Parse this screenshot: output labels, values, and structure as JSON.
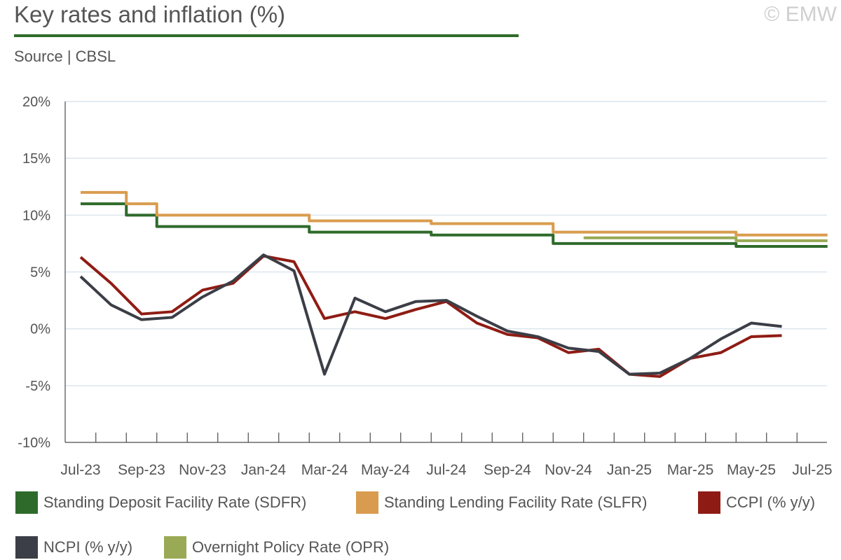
{
  "header": {
    "title": "Key rates and inflation (%)",
    "copyright": "© EMW",
    "source": "Source | CBSL"
  },
  "colors": {
    "title_rule": "#2e6b2a",
    "grid": "#dce6ef",
    "axis": "#4a4a4a"
  },
  "chart_data": {
    "type": "line",
    "title": "Key rates and inflation (%)",
    "x_labels": [
      "Jul-23",
      "Aug-23",
      "Sep-23",
      "Oct-23",
      "Nov-23",
      "Dec-23",
      "Jan-24",
      "Feb-24",
      "Mar-24",
      "Apr-24",
      "May-24",
      "Jun-24",
      "Jul-24",
      "Aug-24",
      "Sep-24",
      "Oct-24",
      "Nov-24",
      "Dec-24",
      "Jan-25",
      "Feb-25",
      "Mar-25",
      "Apr-25",
      "May-25",
      "Jun-25",
      "Jul-25"
    ],
    "x_tick_labels": [
      "Jul-23",
      "Sep-23",
      "Nov-23",
      "Jan-24",
      "Mar-24",
      "May-24",
      "Jul-24",
      "Sep-24",
      "Nov-24",
      "Jan-25",
      "Mar-25",
      "May-25",
      "Jul-25"
    ],
    "y_ticks": [
      "20%",
      "15%",
      "10%",
      "5%",
      "0%",
      "-5%",
      "-10%"
    ],
    "ylim": [
      -10,
      20
    ],
    "series": [
      {
        "name": "Standing Deposit Facility Rate (SDFR)",
        "color": "#2e6b2a",
        "step": true,
        "start": 0,
        "end": 24.5,
        "values": [
          11,
          11,
          10,
          9,
          9,
          9,
          9,
          9,
          8.5,
          8.5,
          8.5,
          8.5,
          8.25,
          8.25,
          8.25,
          8.25,
          7.5,
          7.5,
          7.5,
          7.5,
          7.5,
          7.5,
          7.25,
          7.25,
          7.25
        ]
      },
      {
        "name": "Standing Lending Facility Rate (SLFR)",
        "color": "#d99c4f",
        "step": true,
        "start": 0,
        "end": 24.5,
        "values": [
          12,
          12,
          11,
          10,
          10,
          10,
          10,
          10,
          9.5,
          9.5,
          9.5,
          9.5,
          9.25,
          9.25,
          9.25,
          9.25,
          8.5,
          8.5,
          8.5,
          8.5,
          8.5,
          8.5,
          8.25,
          8.25,
          8.25
        ]
      },
      {
        "name": "CCPI (% y/y)",
        "color": "#8f1c14",
        "step": false,
        "values": [
          6.3,
          4.0,
          1.3,
          1.5,
          3.4,
          4.0,
          6.4,
          5.9,
          0.9,
          1.5,
          0.9,
          1.7,
          2.4,
          0.5,
          -0.5,
          -0.8,
          -2.1,
          -1.8,
          -4.0,
          -4.2,
          -2.6,
          -2.1,
          -0.7,
          -0.6,
          null
        ]
      },
      {
        "name": "NCPI (% y/y)",
        "color": "#3b3e46",
        "step": false,
        "values": [
          4.6,
          2.1,
          0.8,
          1.0,
          2.8,
          4.2,
          6.5,
          5.1,
          -4.0,
          2.7,
          1.5,
          2.4,
          2.5,
          1.1,
          -0.2,
          -0.7,
          -1.7,
          -2.0,
          -4.0,
          -3.9,
          -2.6,
          -0.9,
          0.5,
          0.2,
          null
        ]
      },
      {
        "name": "Overnight Policy Rate (OPR)",
        "color": "#9aa955",
        "step": true,
        "start": 16.5,
        "end": 24.5,
        "values": [
          null,
          null,
          null,
          null,
          null,
          null,
          null,
          null,
          null,
          null,
          null,
          null,
          null,
          null,
          null,
          null,
          null,
          8,
          8,
          8,
          8,
          8,
          7.75,
          7.75,
          7.75
        ]
      }
    ],
    "legend": [
      {
        "label": "Standing Deposit Facility Rate (SDFR)",
        "color": "#2e6b2a"
      },
      {
        "label": "Standing Lending Facility Rate (SLFR)",
        "color": "#d99c4f"
      },
      {
        "label": "CCPI (% y/y)",
        "color": "#8f1c14"
      },
      {
        "label": "NCPI (% y/y)",
        "color": "#3b3e46"
      },
      {
        "label": "Overnight Policy Rate (OPR)",
        "color": "#9aa955"
      }
    ],
    "legend_position": "bottom",
    "grid": true
  }
}
